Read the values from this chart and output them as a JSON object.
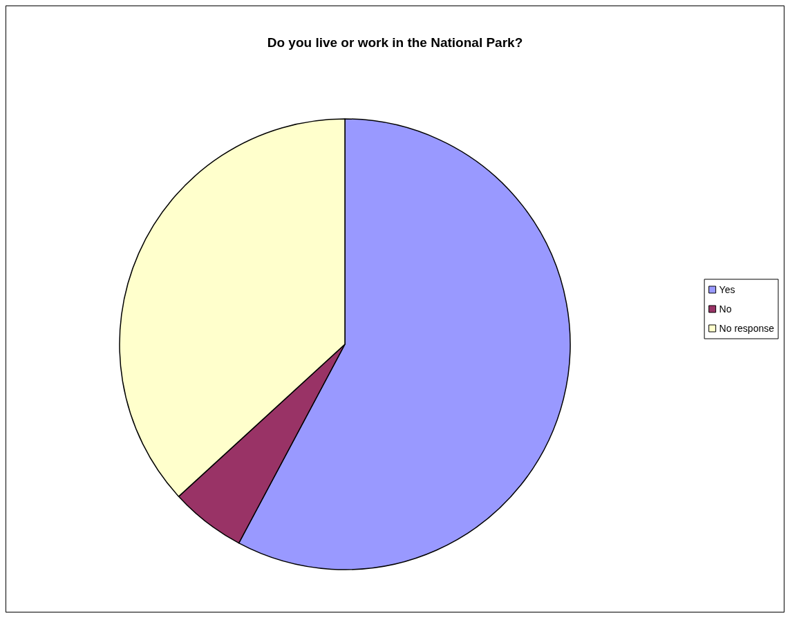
{
  "chart_data": {
    "type": "pie",
    "title": "Do you live or work in the National Park?",
    "categories": [
      "Yes",
      "No",
      "No response"
    ],
    "values": [
      57.8,
      5.4,
      36.8
    ],
    "colors": [
      "#9999ff",
      "#993366",
      "#ffffcc"
    ],
    "legend": "right"
  }
}
